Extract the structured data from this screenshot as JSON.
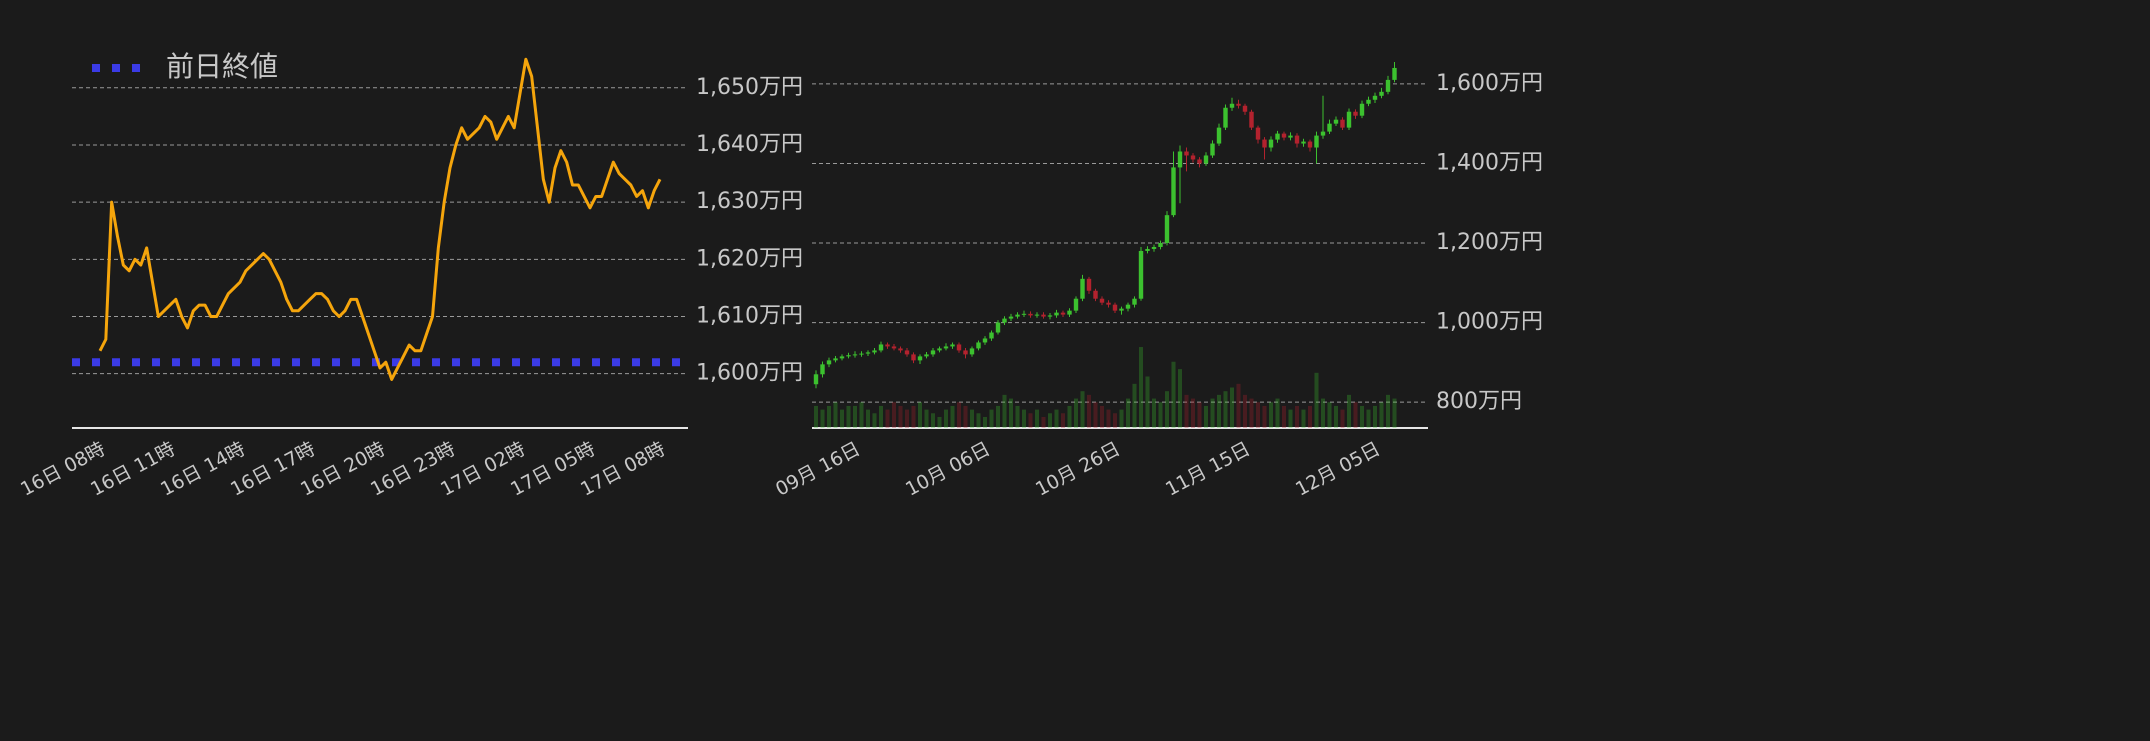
{
  "chart_data": [
    {
      "type": "line",
      "categories": [
        "16日 08時",
        null,
        null,
        null,
        null,
        null,
        null,
        null,
        null,
        null,
        null,
        null,
        "16日 11時",
        null,
        null,
        null,
        null,
        null,
        null,
        null,
        null,
        null,
        null,
        null,
        "16日 14時",
        null,
        null,
        null,
        null,
        null,
        null,
        null,
        null,
        null,
        null,
        null,
        "16日 17時",
        null,
        null,
        null,
        null,
        null,
        null,
        null,
        null,
        null,
        null,
        null,
        "16日 20時",
        null,
        null,
        null,
        null,
        null,
        null,
        null,
        null,
        null,
        null,
        null,
        "16日 23時",
        null,
        null,
        null,
        null,
        null,
        null,
        null,
        null,
        null,
        null,
        null,
        "17日 02時",
        null,
        null,
        null,
        null,
        null,
        null,
        null,
        null,
        null,
        null,
        null,
        "17日 05時",
        null,
        null,
        null,
        null,
        null,
        null,
        null,
        null,
        null,
        null,
        null,
        "17日 08時"
      ],
      "values": [
        1604,
        1606,
        1630,
        1624,
        1619,
        1618,
        1620,
        1619,
        1622,
        1616,
        1610,
        1611,
        1612,
        1613,
        1610,
        1608,
        1611,
        1612,
        1612,
        1610,
        1610,
        1612,
        1614,
        1615,
        1616,
        1618,
        1619,
        1620,
        1621,
        1620,
        1618,
        1616,
        1613,
        1611,
        1611,
        1612,
        1613,
        1614,
        1614,
        1613,
        1611,
        1610,
        1611,
        1613,
        1613,
        1610,
        1607,
        1604,
        1601,
        1602,
        1599,
        1601,
        1603,
        1605,
        1604,
        1604,
        1607,
        1610,
        1622,
        1630,
        1636,
        1640,
        1643,
        1641,
        1642,
        1643,
        1645,
        1644,
        1641,
        1643,
        1645,
        1643,
        1649,
        1655,
        1652,
        1643,
        1634,
        1630,
        1636,
        1639,
        1637,
        1633,
        1633,
        1631,
        1629,
        1631,
        1631,
        1634,
        1637,
        1635,
        1634,
        1633,
        1631,
        1632,
        1629,
        1632,
        1634
      ],
      "color": "#f5a50c",
      "reference_line": {
        "name": "前日終値",
        "value": 1602,
        "color": "#3b3be6"
      },
      "legend": "upper left",
      "ylim": [
        1590.5,
        1656
      ],
      "yticks": [
        {
          "value": 1600,
          "label": "1,600万円"
        },
        {
          "value": 1610,
          "label": "1,610万円"
        },
        {
          "value": 1620,
          "label": "1,620万円"
        },
        {
          "value": 1630,
          "label": "1,630万円"
        },
        {
          "value": 1640,
          "label": "1,640万円"
        },
        {
          "value": 1650,
          "label": "1,650万円"
        }
      ],
      "grid": true
    },
    {
      "type": "candlestick",
      "categories": [
        null,
        null,
        null,
        null,
        null,
        null,
        "09月 16日",
        null,
        null,
        null,
        null,
        null,
        null,
        null,
        null,
        null,
        null,
        null,
        null,
        null,
        null,
        null,
        null,
        null,
        null,
        null,
        "10月 06日",
        null,
        null,
        null,
        null,
        null,
        null,
        null,
        null,
        null,
        null,
        null,
        null,
        null,
        null,
        null,
        null,
        null,
        null,
        null,
        "10月 26日",
        null,
        null,
        null,
        null,
        null,
        null,
        null,
        null,
        null,
        null,
        null,
        null,
        null,
        null,
        null,
        null,
        null,
        null,
        null,
        "11月 15日",
        null,
        null,
        null,
        null,
        null,
        null,
        null,
        null,
        null,
        null,
        null,
        null,
        null,
        null,
        null,
        null,
        null,
        null,
        null,
        "12月 05日",
        null,
        null,
        null
      ],
      "open": [
        845,
        870,
        895,
        905,
        910,
        915,
        918,
        920,
        922,
        925,
        930,
        945,
        940,
        935,
        930,
        920,
        905,
        915,
        920,
        930,
        935,
        940,
        945,
        930,
        920,
        935,
        950,
        960,
        975,
        1000,
        1010,
        1015,
        1020,
        1022,
        1018,
        1020,
        1015,
        1018,
        1025,
        1020,
        1030,
        1060,
        1110,
        1080,
        1060,
        1050,
        1045,
        1030,
        1035,
        1045,
        1060,
        1180,
        1185,
        1190,
        1200,
        1270,
        1390,
        1430,
        1420,
        1410,
        1400,
        1420,
        1450,
        1490,
        1540,
        1550,
        1545,
        1530,
        1490,
        1460,
        1440,
        1460,
        1475,
        1465,
        1470,
        1450,
        1455,
        1440,
        1470,
        1480,
        1500,
        1510,
        1490,
        1530,
        1520,
        1550,
        1560,
        1570,
        1580,
        1610
      ],
      "high": [
        880,
        902,
        912,
        916,
        920,
        924,
        928,
        928,
        930,
        936,
        952,
        950,
        946,
        940,
        936,
        925,
        920,
        926,
        936,
        940,
        948,
        950,
        950,
        936,
        940,
        955,
        966,
        980,
        1006,
        1016,
        1022,
        1026,
        1030,
        1028,
        1026,
        1026,
        1024,
        1032,
        1030,
        1036,
        1066,
        1120,
        1115,
        1085,
        1066,
        1056,
        1050,
        1040,
        1050,
        1066,
        1190,
        1192,
        1196,
        1206,
        1280,
        1430,
        1445,
        1440,
        1426,
        1416,
        1428,
        1458,
        1500,
        1548,
        1565,
        1560,
        1550,
        1535,
        1495,
        1466,
        1468,
        1482,
        1480,
        1478,
        1476,
        1462,
        1460,
        1480,
        1570,
        1510,
        1518,
        1516,
        1538,
        1536,
        1558,
        1568,
        1578,
        1590,
        1620,
        1655
      ],
      "low": [
        835,
        862,
        888,
        900,
        905,
        910,
        912,
        914,
        916,
        920,
        925,
        934,
        930,
        924,
        914,
        898,
        896,
        910,
        914,
        925,
        930,
        934,
        924,
        910,
        914,
        930,
        944,
        954,
        970,
        994,
        1004,
        1010,
        1014,
        1012,
        1012,
        1010,
        1008,
        1012,
        1014,
        1014,
        1024,
        1054,
        1072,
        1054,
        1044,
        1038,
        1024,
        1020,
        1028,
        1038,
        1055,
        1174,
        1178,
        1184,
        1194,
        1265,
        1300,
        1380,
        1402,
        1390,
        1394,
        1414,
        1444,
        1484,
        1532,
        1538,
        1522,
        1484,
        1450,
        1410,
        1430,
        1452,
        1458,
        1458,
        1440,
        1442,
        1430,
        1400,
        1462,
        1474,
        1494,
        1484,
        1484,
        1512,
        1514,
        1544,
        1552,
        1564,
        1574,
        1604
      ],
      "close": [
        870,
        895,
        905,
        910,
        915,
        918,
        920,
        922,
        925,
        930,
        945,
        940,
        935,
        930,
        920,
        905,
        915,
        920,
        930,
        935,
        940,
        945,
        930,
        920,
        935,
        950,
        960,
        975,
        1000,
        1010,
        1015,
        1020,
        1022,
        1018,
        1020,
        1015,
        1018,
        1025,
        1020,
        1030,
        1060,
        1110,
        1080,
        1060,
        1050,
        1045,
        1030,
        1035,
        1045,
        1060,
        1180,
        1185,
        1190,
        1200,
        1270,
        1390,
        1430,
        1420,
        1410,
        1400,
        1420,
        1450,
        1490,
        1540,
        1550,
        1545,
        1530,
        1490,
        1460,
        1440,
        1460,
        1475,
        1465,
        1470,
        1450,
        1455,
        1440,
        1470,
        1480,
        1500,
        1510,
        1490,
        1530,
        1520,
        1550,
        1560,
        1570,
        1580,
        1610,
        1640
      ],
      "volume": [
        6,
        5,
        6,
        7,
        5,
        6,
        6,
        7,
        5,
        4,
        6,
        5,
        7,
        6,
        5,
        6,
        7,
        5,
        4,
        3,
        5,
        6,
        7,
        6,
        5,
        4,
        3,
        5,
        6,
        9,
        8,
        6,
        5,
        4,
        5,
        3,
        4,
        5,
        4,
        6,
        8,
        10,
        9,
        7,
        6,
        5,
        4,
        5,
        8,
        12,
        22,
        14,
        8,
        7,
        10,
        18,
        16,
        9,
        8,
        7,
        6,
        8,
        9,
        10,
        11,
        12,
        9,
        8,
        7,
        6,
        7,
        8,
        6,
        5,
        6,
        5,
        6,
        15,
        8,
        7,
        6,
        5,
        9,
        7,
        6,
        5,
        6,
        7,
        9,
        8
      ],
      "up_color": "#3cc12f",
      "down_color": "#b3222e",
      "ylim": [
        735,
        1660
      ],
      "yticks": [
        {
          "value": 800,
          "label": "800万円"
        },
        {
          "value": 1000,
          "label": "1,000万円"
        },
        {
          "value": 1200,
          "label": "1,200万円"
        },
        {
          "value": 1400,
          "label": "1,400万円"
        },
        {
          "value": 1600,
          "label": "1,600万円"
        }
      ],
      "y2lim": [
        0,
        100
      ],
      "grid": true
    }
  ]
}
